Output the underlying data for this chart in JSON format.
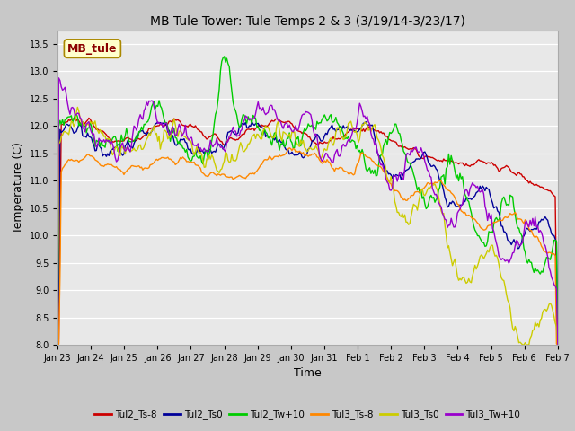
{
  "title": "MB Tule Tower: Tule Temps 2 & 3 (3/19/14-3/23/17)",
  "xlabel": "Time",
  "ylabel": "Temperature (C)",
  "ylim": [
    8.0,
    13.75
  ],
  "yticks": [
    8.0,
    8.5,
    9.0,
    9.5,
    10.0,
    10.5,
    11.0,
    11.5,
    12.0,
    12.5,
    13.0,
    13.5
  ],
  "background_color": "#e8e8e8",
  "plot_bg_color": "#e8e8e8",
  "fig_bg_color": "#c8c8c8",
  "legend_labels": [
    "Tul2_Ts-8",
    "Tul2_Ts0",
    "Tul2_Tw+10",
    "Tul3_Ts-8",
    "Tul3_Ts0",
    "Tul3_Tw+10"
  ],
  "line_colors": [
    "#cc0000",
    "#000099",
    "#00cc00",
    "#ff8800",
    "#cccc00",
    "#9900cc"
  ],
  "annotation_text": "MB_tule",
  "annotation_color": "#8b0000",
  "annotation_bg": "#ffffcc",
  "x_ticklabels": [
    "Jan 23",
    "Jan 24",
    "Jan 25",
    "Jan 26",
    "Jan 27",
    "Jan 28",
    "Jan 29",
    "Jan 30",
    "Jan 31",
    "Feb 1",
    "Feb 2",
    "Feb 3",
    "Feb 4",
    "Feb 5",
    "Feb 6",
    "Feb 7"
  ]
}
